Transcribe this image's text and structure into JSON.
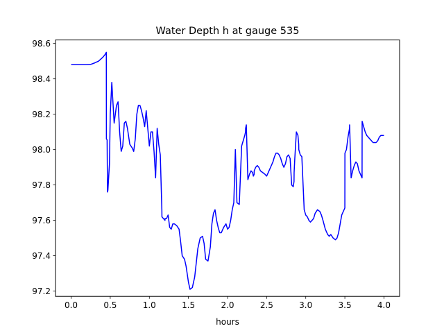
{
  "chart_data": {
    "type": "line",
    "title": "Water Depth h at gauge 535",
    "xlabel": "hours",
    "ylabel": "",
    "xlim": [
      -0.2,
      4.2
    ],
    "ylim": [
      97.17,
      98.62
    ],
    "xticks": [
      0.0,
      0.5,
      1.0,
      1.5,
      2.0,
      2.5,
      3.0,
      3.5,
      4.0
    ],
    "xtick_labels": [
      "0.0",
      "0.5",
      "1.0",
      "1.5",
      "2.0",
      "2.5",
      "3.0",
      "3.5",
      "4.0"
    ],
    "yticks": [
      97.2,
      97.4,
      97.6,
      97.8,
      98.0,
      98.2,
      98.4,
      98.6
    ],
    "ytick_labels": [
      "97.2",
      "97.4",
      "97.6",
      "97.8",
      "98.0",
      "98.2",
      "98.4",
      "98.6"
    ],
    "grid": false,
    "series": [
      {
        "color": "#0000ff",
        "x": [
          0.0,
          0.1,
          0.2,
          0.25,
          0.3,
          0.35,
          0.4,
          0.43,
          0.45,
          0.451,
          0.46,
          0.465,
          0.47,
          0.49,
          0.5,
          0.52,
          0.55,
          0.58,
          0.6,
          0.62,
          0.64,
          0.66,
          0.68,
          0.7,
          0.72,
          0.75,
          0.78,
          0.8,
          0.82,
          0.84,
          0.86,
          0.88,
          0.9,
          0.92,
          0.94,
          0.96,
          0.98,
          1.0,
          1.02,
          1.04,
          1.06,
          1.08,
          1.1,
          1.12,
          1.14,
          1.16,
          1.161,
          1.18,
          1.2,
          1.201,
          1.22,
          1.24,
          1.26,
          1.28,
          1.3,
          1.32,
          1.35,
          1.38,
          1.4,
          1.42,
          1.45,
          1.47,
          1.5,
          1.52,
          1.55,
          1.58,
          1.6,
          1.62,
          1.65,
          1.68,
          1.7,
          1.72,
          1.75,
          1.78,
          1.8,
          1.82,
          1.84,
          1.86,
          1.88,
          1.9,
          1.92,
          1.95,
          1.98,
          2.0,
          2.02,
          2.04,
          2.06,
          2.08,
          2.1,
          2.12,
          2.15,
          2.18,
          2.2,
          2.22,
          2.23,
          2.231,
          2.24,
          2.26,
          2.28,
          2.3,
          2.32,
          2.33,
          2.34,
          2.341,
          2.36,
          2.38,
          2.4,
          2.42,
          2.45,
          2.48,
          2.5,
          2.52,
          2.55,
          2.58,
          2.6,
          2.62,
          2.64,
          2.66,
          2.68,
          2.7,
          2.72,
          2.74,
          2.76,
          2.78,
          2.8,
          2.82,
          2.84,
          2.85,
          2.851,
          2.86,
          2.88,
          2.9,
          2.91,
          2.911,
          2.93,
          2.95,
          2.98,
          3.0,
          3.02,
          3.04,
          3.06,
          3.08,
          3.1,
          3.12,
          3.15,
          3.18,
          3.2,
          3.22,
          3.25,
          3.28,
          3.3,
          3.32,
          3.35,
          3.38,
          3.4,
          3.42,
          3.44,
          3.46,
          3.48,
          3.5,
          3.501,
          3.52,
          3.54,
          3.56,
          3.561,
          3.58,
          3.6,
          3.62,
          3.64,
          3.66,
          3.68,
          3.7,
          3.72,
          3.721,
          3.74,
          3.76,
          3.78,
          3.8,
          3.82,
          3.84,
          3.86,
          3.88,
          3.9,
          3.92,
          3.94,
          3.96,
          3.98,
          4.0
        ],
        "y": [
          98.48,
          98.48,
          98.48,
          98.482,
          98.49,
          98.5,
          98.52,
          98.535,
          98.55,
          98.06,
          98.055,
          97.76,
          97.77,
          97.92,
          98.2,
          98.38,
          98.15,
          98.25,
          98.27,
          98.1,
          97.99,
          98.02,
          98.15,
          98.16,
          98.12,
          98.03,
          98.01,
          97.99,
          98.06,
          98.2,
          98.25,
          98.25,
          98.22,
          98.18,
          98.13,
          98.22,
          98.12,
          98.02,
          98.1,
          98.1,
          97.99,
          97.84,
          98.12,
          98.03,
          97.97,
          97.66,
          97.62,
          97.61,
          97.6,
          97.61,
          97.61,
          97.63,
          97.56,
          97.55,
          97.58,
          97.58,
          97.57,
          97.55,
          97.48,
          97.4,
          97.38,
          97.34,
          97.25,
          97.21,
          97.22,
          97.28,
          97.36,
          97.44,
          97.5,
          97.51,
          97.47,
          97.38,
          97.37,
          97.45,
          97.58,
          97.64,
          97.66,
          97.6,
          97.56,
          97.53,
          97.53,
          97.56,
          97.58,
          97.55,
          97.56,
          97.6,
          97.66,
          97.7,
          98.0,
          97.7,
          97.69,
          98.02,
          98.05,
          98.08,
          98.1,
          98.12,
          98.14,
          97.83,
          97.86,
          97.88,
          97.87,
          97.85,
          97.86,
          97.88,
          97.9,
          97.91,
          97.9,
          97.88,
          97.87,
          97.86,
          97.85,
          97.87,
          97.9,
          97.93,
          97.96,
          97.98,
          97.98,
          97.97,
          97.95,
          97.92,
          97.9,
          97.92,
          97.96,
          97.97,
          97.95,
          97.8,
          97.79,
          97.82,
          97.87,
          97.95,
          98.1,
          98.08,
          98.03,
          98.0,
          97.97,
          97.96,
          97.66,
          97.63,
          97.62,
          97.6,
          97.59,
          97.6,
          97.61,
          97.64,
          97.66,
          97.65,
          97.63,
          97.6,
          97.55,
          97.52,
          97.51,
          97.52,
          97.5,
          97.49,
          97.5,
          97.53,
          97.58,
          97.63,
          97.65,
          97.67,
          97.98,
          98.0,
          98.07,
          98.12,
          98.14,
          97.84,
          97.88,
          97.91,
          97.93,
          97.92,
          97.88,
          97.86,
          97.84,
          98.16,
          98.13,
          98.1,
          98.08,
          98.07,
          98.06,
          98.05,
          98.04,
          98.04,
          98.04,
          98.05,
          98.07,
          98.08,
          98.08,
          98.08
        ]
      }
    ]
  }
}
